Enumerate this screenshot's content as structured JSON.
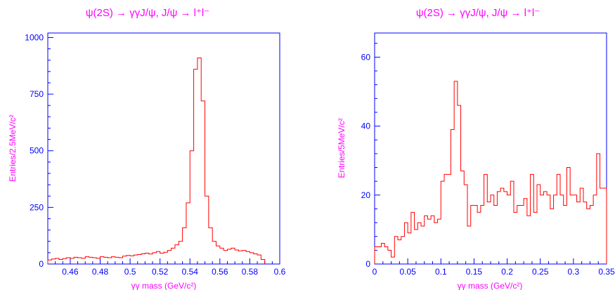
{
  "chart_data": [
    {
      "type": "histogram",
      "title": "ψ(2S) → γγJ/ψ, J/ψ → l⁺l⁻",
      "xlabel": "γγ mass (GeV/c²)",
      "ylabel": "Entries/2.5MeV/c²",
      "xlim": [
        0.445,
        0.6
      ],
      "ylim": [
        0,
        1020
      ],
      "x_ticks": [
        0.46,
        0.48,
        0.5,
        0.52,
        0.54,
        0.56,
        0.58,
        0.6
      ],
      "x_tick_labels": [
        "0.46",
        "0.48",
        "0.5",
        "0.52",
        "0.54",
        "0.56",
        "0.58",
        "0.6"
      ],
      "y_ticks": [
        0,
        250,
        500,
        750,
        1000
      ],
      "y_tick_labels": [
        "0",
        "250",
        "500",
        "750",
        "1000"
      ],
      "bin_edges": [
        0.445,
        0.4475,
        0.45,
        0.4525,
        0.455,
        0.4575,
        0.46,
        0.4625,
        0.465,
        0.4675,
        0.47,
        0.4725,
        0.475,
        0.4775,
        0.48,
        0.4825,
        0.485,
        0.4875,
        0.49,
        0.4925,
        0.495,
        0.4975,
        0.5,
        0.5025,
        0.505,
        0.5075,
        0.51,
        0.5125,
        0.515,
        0.5175,
        0.52,
        0.5225,
        0.525,
        0.5275,
        0.53,
        0.5325,
        0.535,
        0.5375,
        0.54,
        0.5425,
        0.545,
        0.5475,
        0.55,
        0.5525,
        0.555,
        0.5575,
        0.56,
        0.5625,
        0.565,
        0.5675,
        0.57,
        0.5725,
        0.575,
        0.5775,
        0.58,
        0.5825,
        0.585,
        0.5875,
        0.59
      ],
      "values": [
        18,
        22,
        25,
        20,
        24,
        28,
        25,
        30,
        28,
        25,
        32,
        30,
        28,
        25,
        32,
        30,
        28,
        32,
        30,
        28,
        35,
        38,
        36,
        40,
        42,
        45,
        48,
        44,
        50,
        55,
        48,
        52,
        60,
        70,
        85,
        100,
        160,
        270,
        500,
        860,
        910,
        720,
        300,
        160,
        100,
        80,
        70,
        60,
        65,
        70,
        62,
        58,
        60,
        55,
        50,
        45,
        40,
        20
      ]
    },
    {
      "type": "histogram",
      "title": "ψ(2S) → γγJ/ψ, J/ψ → l⁺l⁻",
      "xlabel": "γγ mass (GeV/c²)",
      "ylabel": "Entries/5MeV/c²",
      "xlim": [
        0,
        0.35
      ],
      "ylim": [
        0,
        67
      ],
      "x_ticks": [
        0,
        0.05,
        0.1,
        0.15,
        0.2,
        0.25,
        0.3,
        0.35
      ],
      "x_tick_labels": [
        "0",
        "0.05",
        "0.1",
        "0.15",
        "0.2",
        "0.25",
        "0.3",
        "0.35"
      ],
      "y_ticks": [
        0,
        20,
        40,
        60
      ],
      "y_tick_labels": [
        "0",
        "20",
        "40",
        "60"
      ],
      "bin_edges": [
        0,
        0.005,
        0.01,
        0.015,
        0.02,
        0.025,
        0.03,
        0.035,
        0.04,
        0.045,
        0.05,
        0.055,
        0.06,
        0.065,
        0.07,
        0.075,
        0.08,
        0.085,
        0.09,
        0.095,
        0.1,
        0.105,
        0.11,
        0.115,
        0.12,
        0.125,
        0.13,
        0.135,
        0.14,
        0.145,
        0.15,
        0.155,
        0.16,
        0.165,
        0.17,
        0.175,
        0.18,
        0.185,
        0.19,
        0.195,
        0.2,
        0.205,
        0.21,
        0.215,
        0.22,
        0.225,
        0.23,
        0.235,
        0.24,
        0.245,
        0.25,
        0.255,
        0.26,
        0.265,
        0.27,
        0.275,
        0.28,
        0.285,
        0.29,
        0.295,
        0.3,
        0.305,
        0.31,
        0.315,
        0.32,
        0.325,
        0.33,
        0.335,
        0.34,
        0.345,
        0.35
      ],
      "values": [
        5,
        5,
        6,
        5,
        4,
        2,
        8,
        7,
        8,
        12,
        9,
        15,
        10,
        12,
        11,
        14,
        13,
        14,
        12,
        13,
        24,
        26,
        26,
        39,
        53,
        46,
        27,
        23,
        11,
        17,
        17,
        15,
        17,
        26,
        18,
        20,
        17,
        21,
        22,
        21,
        20,
        24,
        15,
        17,
        17,
        19,
        14,
        26,
        15,
        23,
        20,
        21,
        20,
        16,
        20,
        26,
        20,
        17,
        28,
        20,
        20,
        18,
        22,
        18,
        16,
        17,
        20,
        32,
        22,
        22
      ]
    }
  ]
}
